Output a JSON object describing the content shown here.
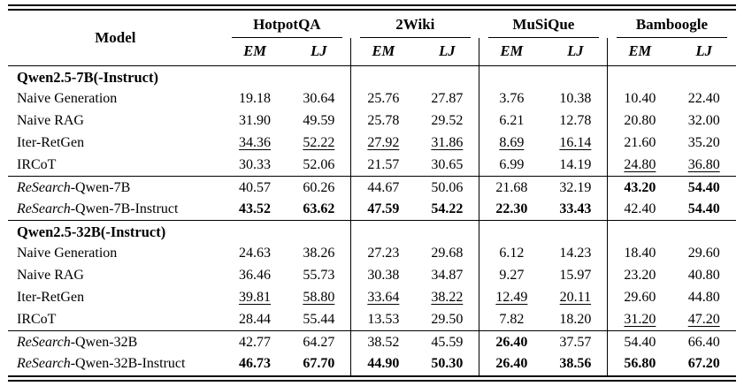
{
  "table": {
    "model_header": "Model",
    "groups": [
      {
        "label": "HotpotQA"
      },
      {
        "label": "2Wiki"
      },
      {
        "label": "MuSiQue"
      },
      {
        "label": "Bamboogle"
      }
    ],
    "metrics": {
      "em": "EM",
      "lj": "LJ"
    },
    "sections": [
      {
        "title": "Qwen2.5-7B(-Instruct)",
        "rows": [
          {
            "model": "Naive Generation",
            "values": [
              "19.18",
              "30.64",
              "25.76",
              "27.87",
              "3.76",
              "10.38",
              "10.40",
              "22.40"
            ]
          },
          {
            "model": "Naive RAG",
            "values": [
              "31.90",
              "49.59",
              "25.78",
              "29.52",
              "6.21",
              "12.78",
              "20.80",
              "32.00"
            ]
          },
          {
            "model": "Iter-RetGen",
            "values": [
              "34.36",
              "52.22",
              "27.92",
              "31.86",
              "8.69",
              "16.14",
              "21.60",
              "35.20"
            ]
          },
          {
            "model": "IRCoT",
            "values": [
              "30.33",
              "52.06",
              "21.57",
              "30.65",
              "6.99",
              "14.19",
              "24.80",
              "36.80"
            ]
          }
        ],
        "research_rows": [
          {
            "model_italic": "ReSearch",
            "model_rest": "-Qwen-7B",
            "values": [
              "40.57",
              "60.26",
              "44.67",
              "50.06",
              "21.68",
              "32.19",
              "43.20",
              "54.40"
            ]
          },
          {
            "model_italic": "ReSearch",
            "model_rest": "-Qwen-7B-Instruct",
            "values": [
              "43.52",
              "63.62",
              "47.59",
              "54.22",
              "22.30",
              "33.43",
              "42.40",
              "54.40"
            ]
          }
        ]
      },
      {
        "title": "Qwen2.5-32B(-Instruct)",
        "rows": [
          {
            "model": "Naive Generation",
            "values": [
              "24.63",
              "38.26",
              "27.23",
              "29.68",
              "6.12",
              "14.23",
              "18.40",
              "29.60"
            ]
          },
          {
            "model": "Naive RAG",
            "values": [
              "36.46",
              "55.73",
              "30.38",
              "34.87",
              "9.27",
              "15.97",
              "23.20",
              "40.80"
            ]
          },
          {
            "model": "Iter-RetGen",
            "values": [
              "39.81",
              "58.80",
              "33.64",
              "38.22",
              "12.49",
              "20.11",
              "29.60",
              "44.80"
            ]
          },
          {
            "model": "IRCoT",
            "values": [
              "28.44",
              "55.44",
              "13.53",
              "29.50",
              "7.82",
              "18.20",
              "31.20",
              "47.20"
            ]
          }
        ],
        "research_rows": [
          {
            "model_italic": "ReSearch",
            "model_rest": "-Qwen-32B",
            "values": [
              "42.77",
              "64.27",
              "38.52",
              "45.59",
              "26.40",
              "37.57",
              "54.40",
              "66.40"
            ]
          },
          {
            "model_italic": "ReSearch",
            "model_rest": "-Qwen-32B-Instruct",
            "values": [
              "46.73",
              "67.70",
              "44.90",
              "50.30",
              "26.40",
              "38.56",
              "56.80",
              "67.20"
            ]
          }
        ]
      }
    ]
  }
}
